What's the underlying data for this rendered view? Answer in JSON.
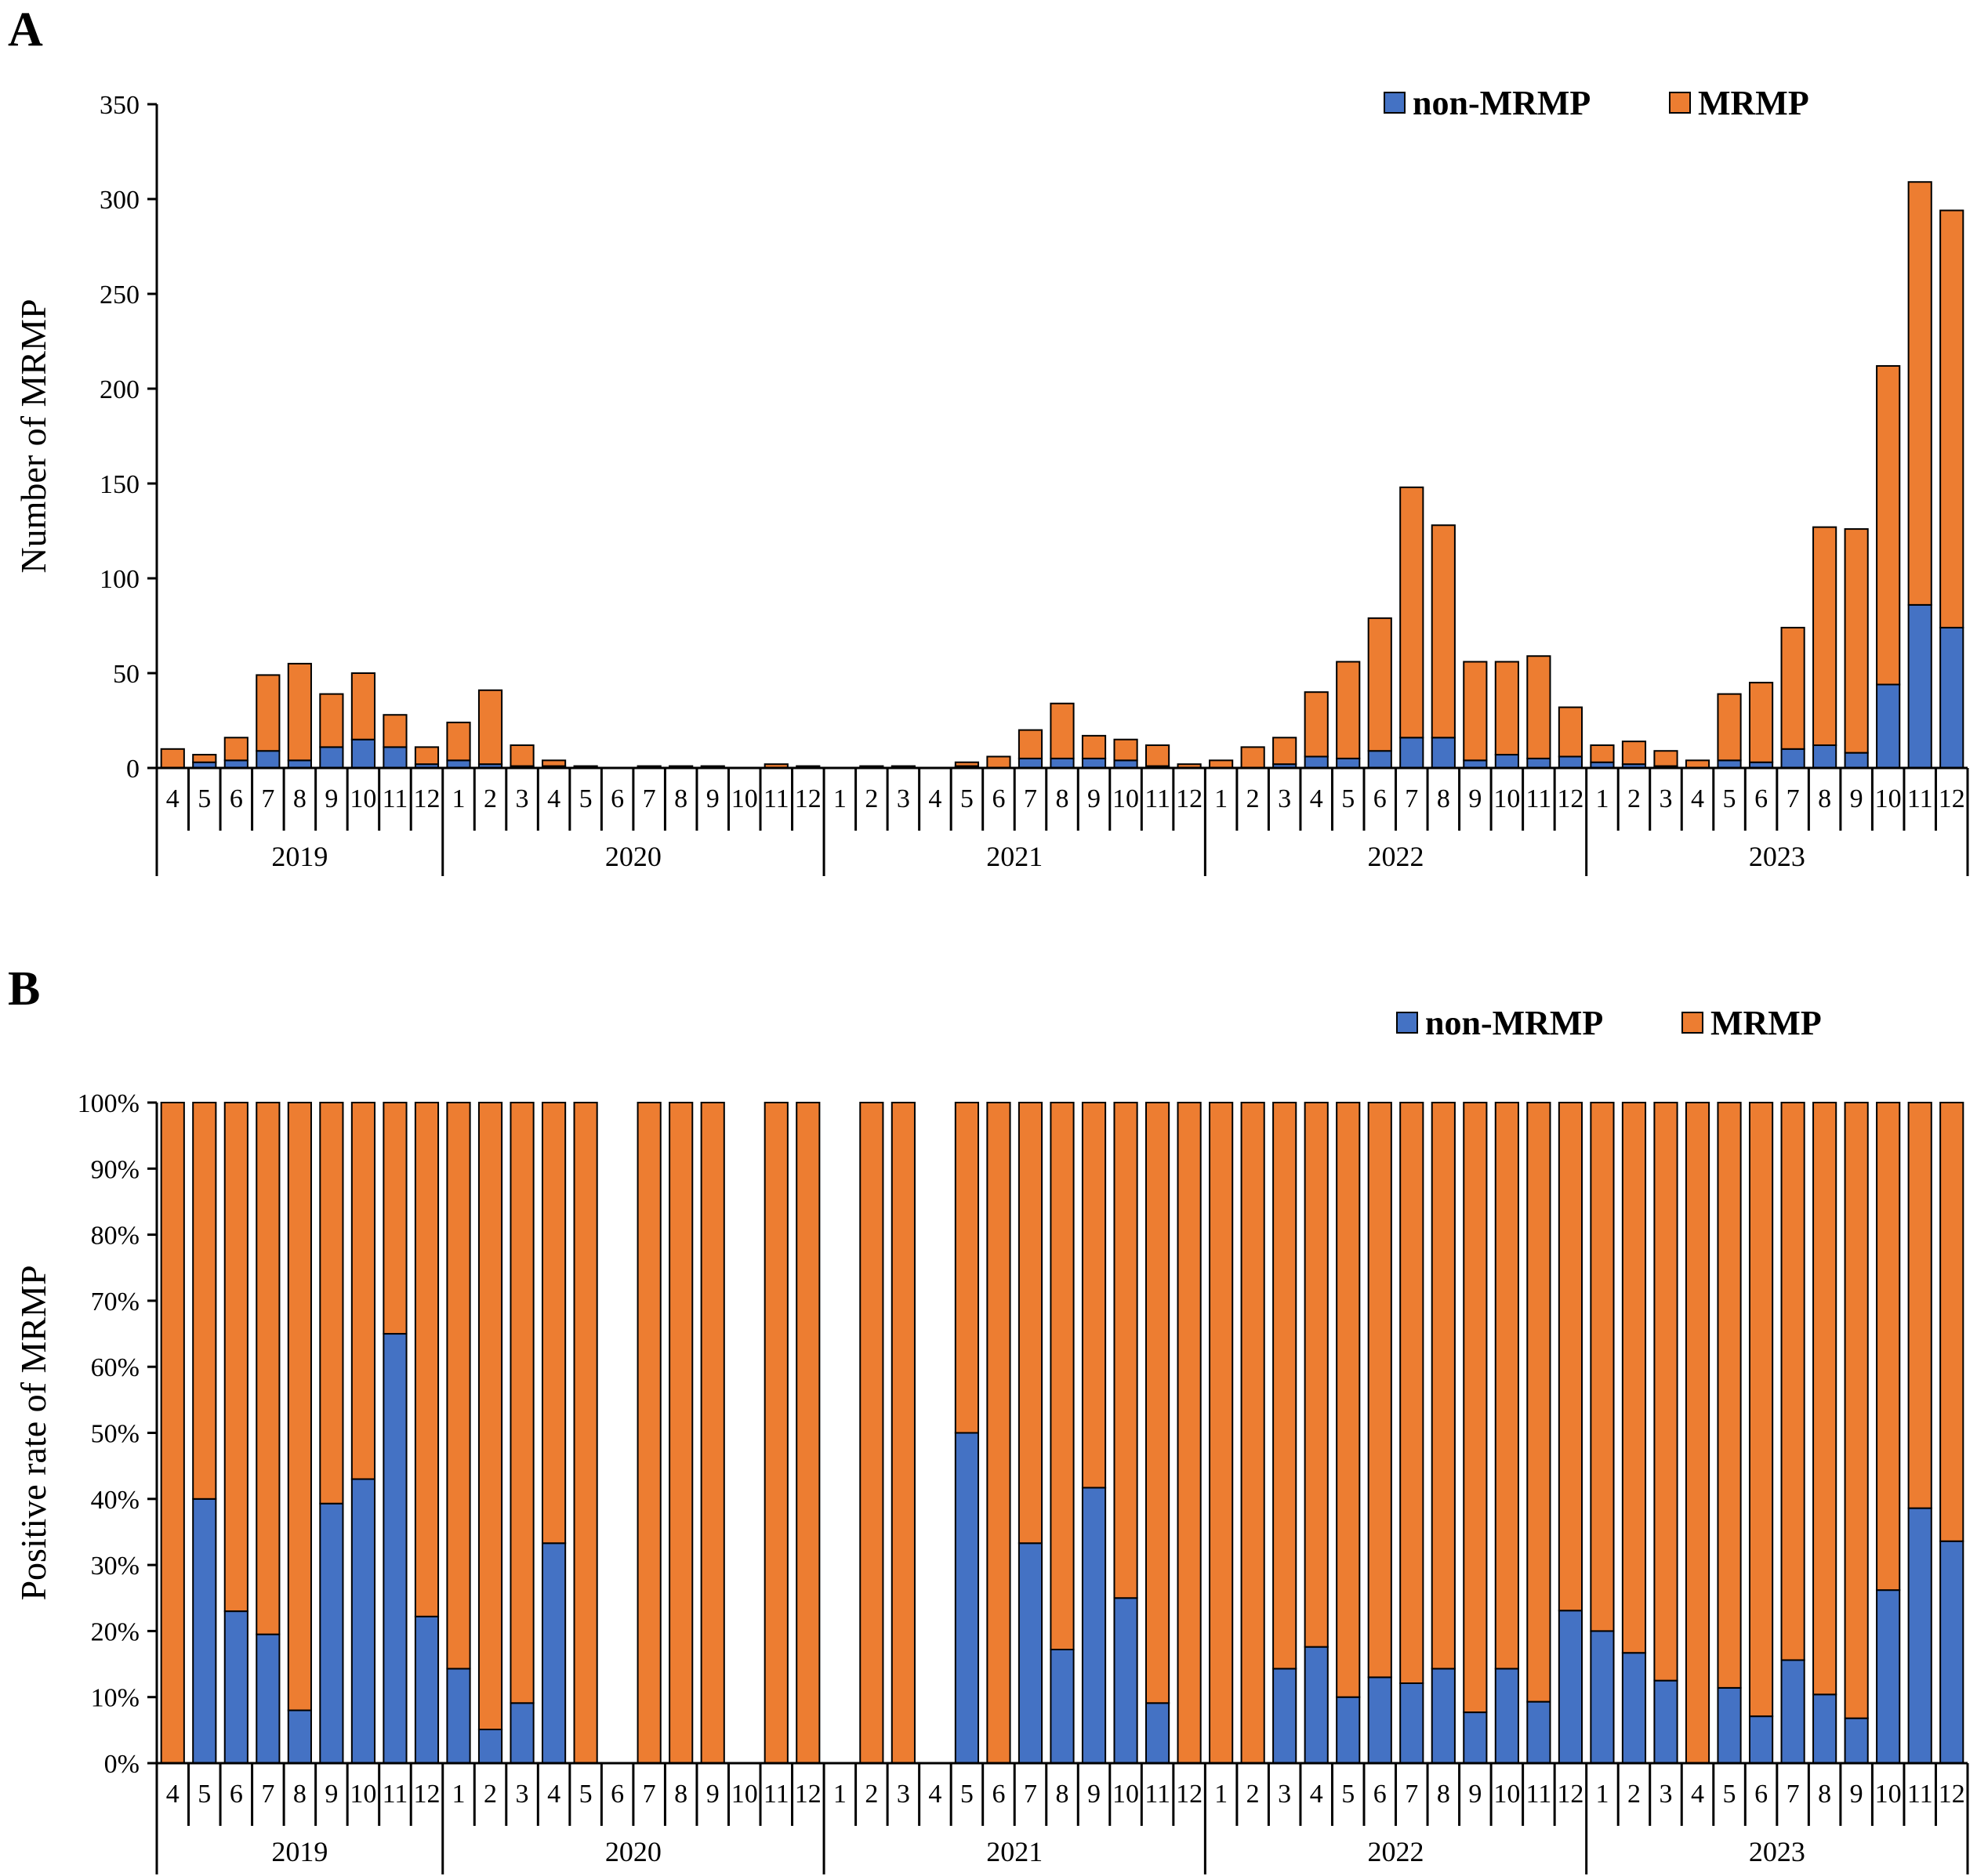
{
  "colors": {
    "non_mrmp": "#4472C4",
    "mrmp": "#ED7D31",
    "axis": "#000000"
  },
  "chart_data": [
    {
      "panel": "A",
      "type": "bar",
      "stacked": true,
      "ylabel": "Number of MRMP",
      "ylim": [
        0,
        350
      ],
      "yticks": [
        0,
        50,
        100,
        150,
        200,
        250,
        300,
        350
      ],
      "ytick_labels": [
        "0",
        "50",
        "100",
        "150",
        "200",
        "250",
        "300",
        "350"
      ],
      "legend": {
        "position": "top-right",
        "entries": [
          "non-MRMP",
          "MRMP"
        ]
      },
      "years": [
        {
          "label": "2019",
          "months": [
            "4",
            "5",
            "6",
            "7",
            "8",
            "9",
            "10",
            "11",
            "12"
          ]
        },
        {
          "label": "2020",
          "months": [
            "1",
            "2",
            "3",
            "4",
            "5",
            "6",
            "7",
            "8",
            "9",
            "10",
            "11",
            "12"
          ]
        },
        {
          "label": "2021",
          "months": [
            "1",
            "2",
            "3",
            "4",
            "5",
            "6",
            "7",
            "8",
            "9",
            "10",
            "11",
            "12"
          ]
        },
        {
          "label": "2022",
          "months": [
            "1",
            "2",
            "3",
            "4",
            "5",
            "6",
            "7",
            "8",
            "9",
            "10",
            "11",
            "12"
          ]
        },
        {
          "label": "2023",
          "months": [
            "1",
            "2",
            "3",
            "4",
            "5",
            "6",
            "7",
            "8",
            "9",
            "10",
            "11",
            "12"
          ]
        }
      ],
      "series": [
        {
          "name": "non-MRMP",
          "values": [
            0,
            3,
            4,
            9,
            4,
            11,
            15,
            11,
            2,
            4,
            2,
            1,
            1,
            0,
            0,
            0,
            0,
            0,
            0,
            0,
            0,
            0,
            0,
            0,
            0,
            1,
            0,
            5,
            5,
            5,
            4,
            1,
            0,
            0,
            0,
            2,
            6,
            5,
            9,
            16,
            16,
            4,
            7,
            5,
            6,
            3,
            2,
            1,
            0,
            4,
            3,
            10,
            12,
            8,
            44,
            86,
            74
          ]
        },
        {
          "name": "MRMP",
          "values": [
            10,
            4,
            12,
            40,
            51,
            28,
            35,
            17,
            9,
            20,
            39,
            11,
            3,
            1,
            0,
            1,
            1,
            1,
            0,
            2,
            1,
            0,
            1,
            1,
            0,
            2,
            6,
            15,
            29,
            12,
            11,
            11,
            2,
            4,
            11,
            14,
            34,
            51,
            70,
            132,
            112,
            52,
            49,
            54,
            26,
            9,
            12,
            8,
            4,
            35,
            42,
            64,
            115,
            118,
            168,
            223,
            220
          ]
        }
      ]
    },
    {
      "panel": "B",
      "type": "bar",
      "stacked": true,
      "percent": true,
      "ylabel": "Positive rate of MRMP",
      "ylim": [
        0,
        100
      ],
      "yticks": [
        0,
        10,
        20,
        30,
        40,
        50,
        60,
        70,
        80,
        90,
        100
      ],
      "ytick_labels": [
        "0%",
        "10%",
        "20%",
        "30%",
        "40%",
        "50%",
        "60%",
        "70%",
        "80%",
        "90%",
        "100%"
      ],
      "legend": {
        "position": "top-right",
        "entries": [
          "non-MRMP",
          "MRMP"
        ]
      },
      "years": [
        {
          "label": "2019",
          "months": [
            "4",
            "5",
            "6",
            "7",
            "8",
            "9",
            "10",
            "11",
            "12"
          ]
        },
        {
          "label": "2020",
          "months": [
            "1",
            "2",
            "3",
            "4",
            "5",
            "6",
            "7",
            "8",
            "9",
            "10",
            "11",
            "12"
          ]
        },
        {
          "label": "2021",
          "months": [
            "1",
            "2",
            "3",
            "4",
            "5",
            "6",
            "7",
            "8",
            "9",
            "10",
            "11",
            "12"
          ]
        },
        {
          "label": "2022",
          "months": [
            "1",
            "2",
            "3",
            "4",
            "5",
            "6",
            "7",
            "8",
            "9",
            "10",
            "11",
            "12"
          ]
        },
        {
          "label": "2023",
          "months": [
            "1",
            "2",
            "3",
            "4",
            "5",
            "6",
            "7",
            "8",
            "9",
            "10",
            "11",
            "12"
          ]
        }
      ],
      "series": [
        {
          "name": "non-MRMP",
          "values": [
            0,
            40,
            23,
            19.5,
            8,
            39.3,
            43,
            65,
            22.2,
            14.3,
            5.1,
            9.1,
            33.3,
            0,
            null,
            0,
            0,
            0,
            null,
            0,
            0,
            null,
            0,
            0,
            null,
            50,
            0,
            33.3,
            17.2,
            41.7,
            25,
            9.1,
            0,
            0,
            0,
            14.3,
            17.6,
            10,
            13,
            12.1,
            14.3,
            7.7,
            14.3,
            9.3,
            23.1,
            20,
            16.7,
            12.5,
            0,
            11.4,
            7.1,
            15.6,
            10.4,
            6.8,
            26.2,
            38.6,
            33.6
          ]
        },
        {
          "name": "MRMP",
          "values": [
            100,
            60,
            77,
            80.5,
            92,
            60.7,
            57,
            35,
            77.8,
            85.7,
            94.9,
            90.9,
            66.7,
            100,
            null,
            100,
            100,
            100,
            null,
            100,
            100,
            null,
            100,
            100,
            null,
            50,
            100,
            66.7,
            82.8,
            58.3,
            75,
            90.9,
            100,
            100,
            100,
            85.7,
            82.4,
            90,
            87,
            87.9,
            85.7,
            92.3,
            85.7,
            90.7,
            76.9,
            80,
            83.3,
            87.5,
            100,
            88.6,
            92.9,
            84.4,
            89.6,
            93.2,
            73.8,
            61.4,
            66.4
          ]
        }
      ]
    }
  ]
}
